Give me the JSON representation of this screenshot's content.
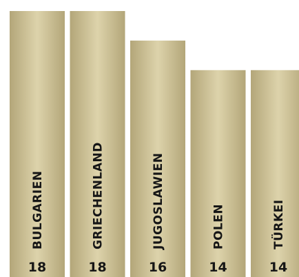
{
  "chart_data": {
    "type": "bar",
    "categories": [
      "BULGARIEN",
      "GRIECHENLAND",
      "JUGOSLAWIEN",
      "POLEN",
      "TÜRKEI"
    ],
    "values": [
      18,
      18,
      16,
      14,
      14
    ],
    "title": "",
    "xlabel": "",
    "ylabel": "",
    "ylim": [
      0,
      18
    ],
    "grid": false,
    "legend": "none",
    "colors": {
      "bar_edge": "#b3a679",
      "bar_center": "#ddd3ab",
      "text": "#161616"
    }
  }
}
